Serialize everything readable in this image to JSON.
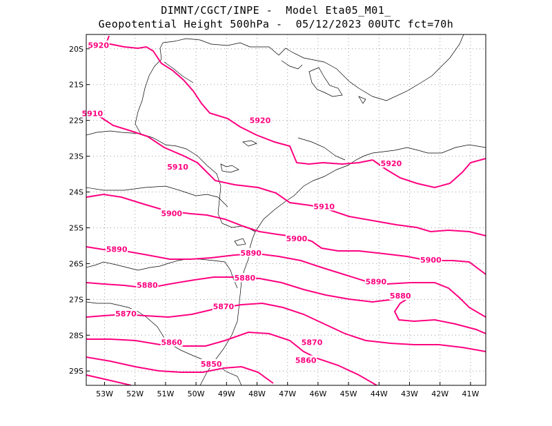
{
  "title": {
    "line1": "DIMNT/CGCT/INPE -  Model Eta05_M01_",
    "line2": "Geopotential Height 500hPa -  05/12/2023 00UTC fct=70h"
  },
  "colors": {
    "contour": "#ff007f",
    "coast": "#000000",
    "grid": "#999999",
    "frame": "#000000"
  },
  "map": {
    "lon_range": [
      -53.6,
      -40.5
    ],
    "lat_range": [
      -19.6,
      -29.4
    ],
    "lon_ticks": [
      "53W",
      "52W",
      "51W",
      "50W",
      "49W",
      "48W",
      "47W",
      "46W",
      "45W",
      "44W",
      "43W",
      "42W",
      "41W"
    ],
    "lat_ticks": [
      "20S",
      "21S",
      "22S",
      "23S",
      "24S",
      "25S",
      "26S",
      "27S",
      "28S",
      "29S"
    ],
    "grid": "dotted",
    "contour_labels": [
      {
        "text": "5920",
        "lon": -53.2,
        "lat": -19.9
      },
      {
        "text": "5920",
        "lon": -47.9,
        "lat": -22.0
      },
      {
        "text": "5920",
        "lon": -43.6,
        "lat": -23.2
      },
      {
        "text": "5910",
        "lon": -53.4,
        "lat": -21.8
      },
      {
        "text": "5910",
        "lon": -50.6,
        "lat": -23.3
      },
      {
        "text": "5910",
        "lon": -45.8,
        "lat": -24.4
      },
      {
        "text": "5900",
        "lon": -50.8,
        "lat": -24.6
      },
      {
        "text": "5900",
        "lon": -46.7,
        "lat": -25.3
      },
      {
        "text": "5900",
        "lon": -42.3,
        "lat": -25.9
      },
      {
        "text": "5890",
        "lon": -52.6,
        "lat": -25.6
      },
      {
        "text": "5890",
        "lon": -48.2,
        "lat": -25.7
      },
      {
        "text": "5890",
        "lon": -44.1,
        "lat": -26.5
      },
      {
        "text": "5880",
        "lon": -51.6,
        "lat": -26.6
      },
      {
        "text": "5880",
        "lon": -48.4,
        "lat": -26.4
      },
      {
        "text": "5880",
        "lon": -43.3,
        "lat": -26.9
      },
      {
        "text": "5870",
        "lon": -49.1,
        "lat": -27.2
      },
      {
        "text": "5870",
        "lon": -52.3,
        "lat": -27.4
      },
      {
        "text": "5870",
        "lon": -46.2,
        "lat": -28.2
      },
      {
        "text": "5860",
        "lon": -50.8,
        "lat": -28.2
      },
      {
        "text": "5860",
        "lon": -46.4,
        "lat": -28.7
      },
      {
        "text": "5850",
        "lon": -49.5,
        "lat": -28.8
      }
    ]
  }
}
